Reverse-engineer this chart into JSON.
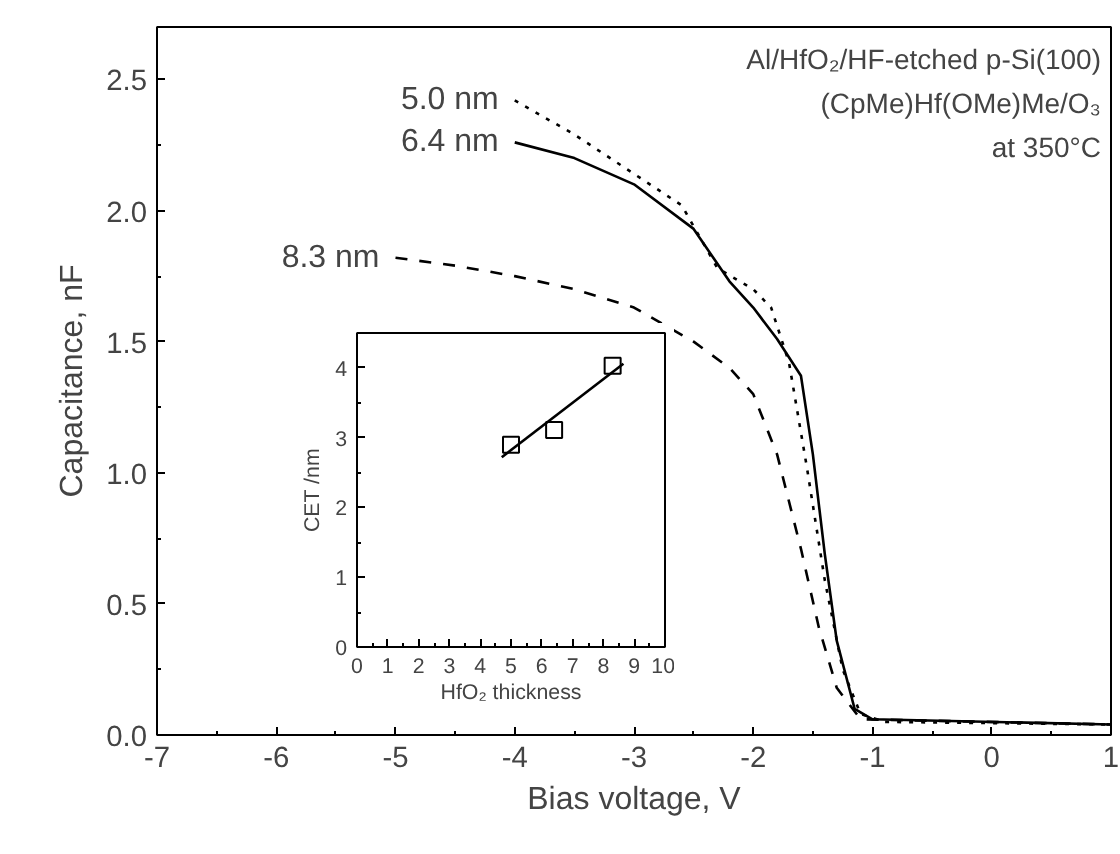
{
  "chart_data": [
    {
      "type": "line",
      "xlabel": "Bias voltage, V",
      "ylabel": "Capacitance, nF",
      "xlim": [
        -7,
        1
      ],
      "ylim": [
        0,
        2.7
      ],
      "xticks": [
        -7,
        -6,
        -5,
        -4,
        -3,
        -2,
        -1,
        0,
        1
      ],
      "yticks": [
        {
          "value": 0,
          "label": "0.0"
        },
        0.5,
        {
          "value": 1,
          "label": "1.0"
        },
        1.5,
        {
          "value": 2,
          "label": "2.0"
        },
        2.5
      ],
      "grid": false,
      "annotations": [
        "Al/HfO₂/HF-etched p-Si(100)",
        "(CpMe)Hf(OMe)Me/O₃",
        "at 350°C"
      ],
      "series": [
        {
          "name": "5.0 nm",
          "color": "#000000",
          "line_style": "dotted",
          "x": [
            -4,
            -3.5,
            -3,
            -2.6,
            -2.3,
            -2.0,
            -1.85,
            -1.7,
            -1.55,
            -1.4,
            -1.25,
            -1.1,
            -0.9,
            1
          ],
          "values": [
            2.42,
            2.29,
            2.14,
            2.02,
            1.78,
            1.7,
            1.63,
            1.42,
            1.02,
            0.59,
            0.25,
            0.08,
            0.05,
            0.04
          ]
        },
        {
          "name": "6.4 nm",
          "color": "#000000",
          "line_style": "solid",
          "x": [
            -4,
            -3.5,
            -3,
            -2.5,
            -2.2,
            -2.0,
            -1.8,
            -1.6,
            -1.5,
            -1.4,
            -1.3,
            -1.15,
            -1.0,
            1
          ],
          "values": [
            2.26,
            2.2,
            2.1,
            1.93,
            1.73,
            1.63,
            1.51,
            1.37,
            1.07,
            0.69,
            0.36,
            0.1,
            0.06,
            0.04
          ]
        },
        {
          "name": "8.3 nm",
          "color": "#000000",
          "line_style": "dashed",
          "x": [
            -5,
            -4.5,
            -4,
            -3.5,
            -3,
            -2.5,
            -2.2,
            -2.0,
            -1.8,
            -1.6,
            -1.45,
            -1.3,
            -1.1,
            1
          ],
          "values": [
            1.82,
            1.79,
            1.75,
            1.7,
            1.63,
            1.5,
            1.4,
            1.3,
            1.07,
            0.71,
            0.41,
            0.18,
            0.06,
            0.04
          ]
        }
      ]
    },
    {
      "type": "scatter",
      "xlabel": "HfO₂ thickness",
      "ylabel": "CET /nm",
      "xlim": [
        0,
        10
      ],
      "ylim": [
        0,
        4.5
      ],
      "xticks": [
        0,
        1,
        2,
        3,
        4,
        5,
        6,
        7,
        8,
        9,
        10
      ],
      "yticks": [
        0,
        1,
        2,
        3,
        4
      ],
      "grid": false,
      "series": [
        {
          "type": "scatter",
          "color": "#000000",
          "marker": "square",
          "x": [
            5.0,
            6.4,
            8.3
          ],
          "values": [
            2.9,
            3.11,
            4.03
          ]
        },
        {
          "type": "line",
          "color": "#000000",
          "line_style": "solid",
          "x": [
            4.7,
            8.65
          ],
          "values": [
            2.72,
            4.06
          ]
        }
      ]
    }
  ]
}
